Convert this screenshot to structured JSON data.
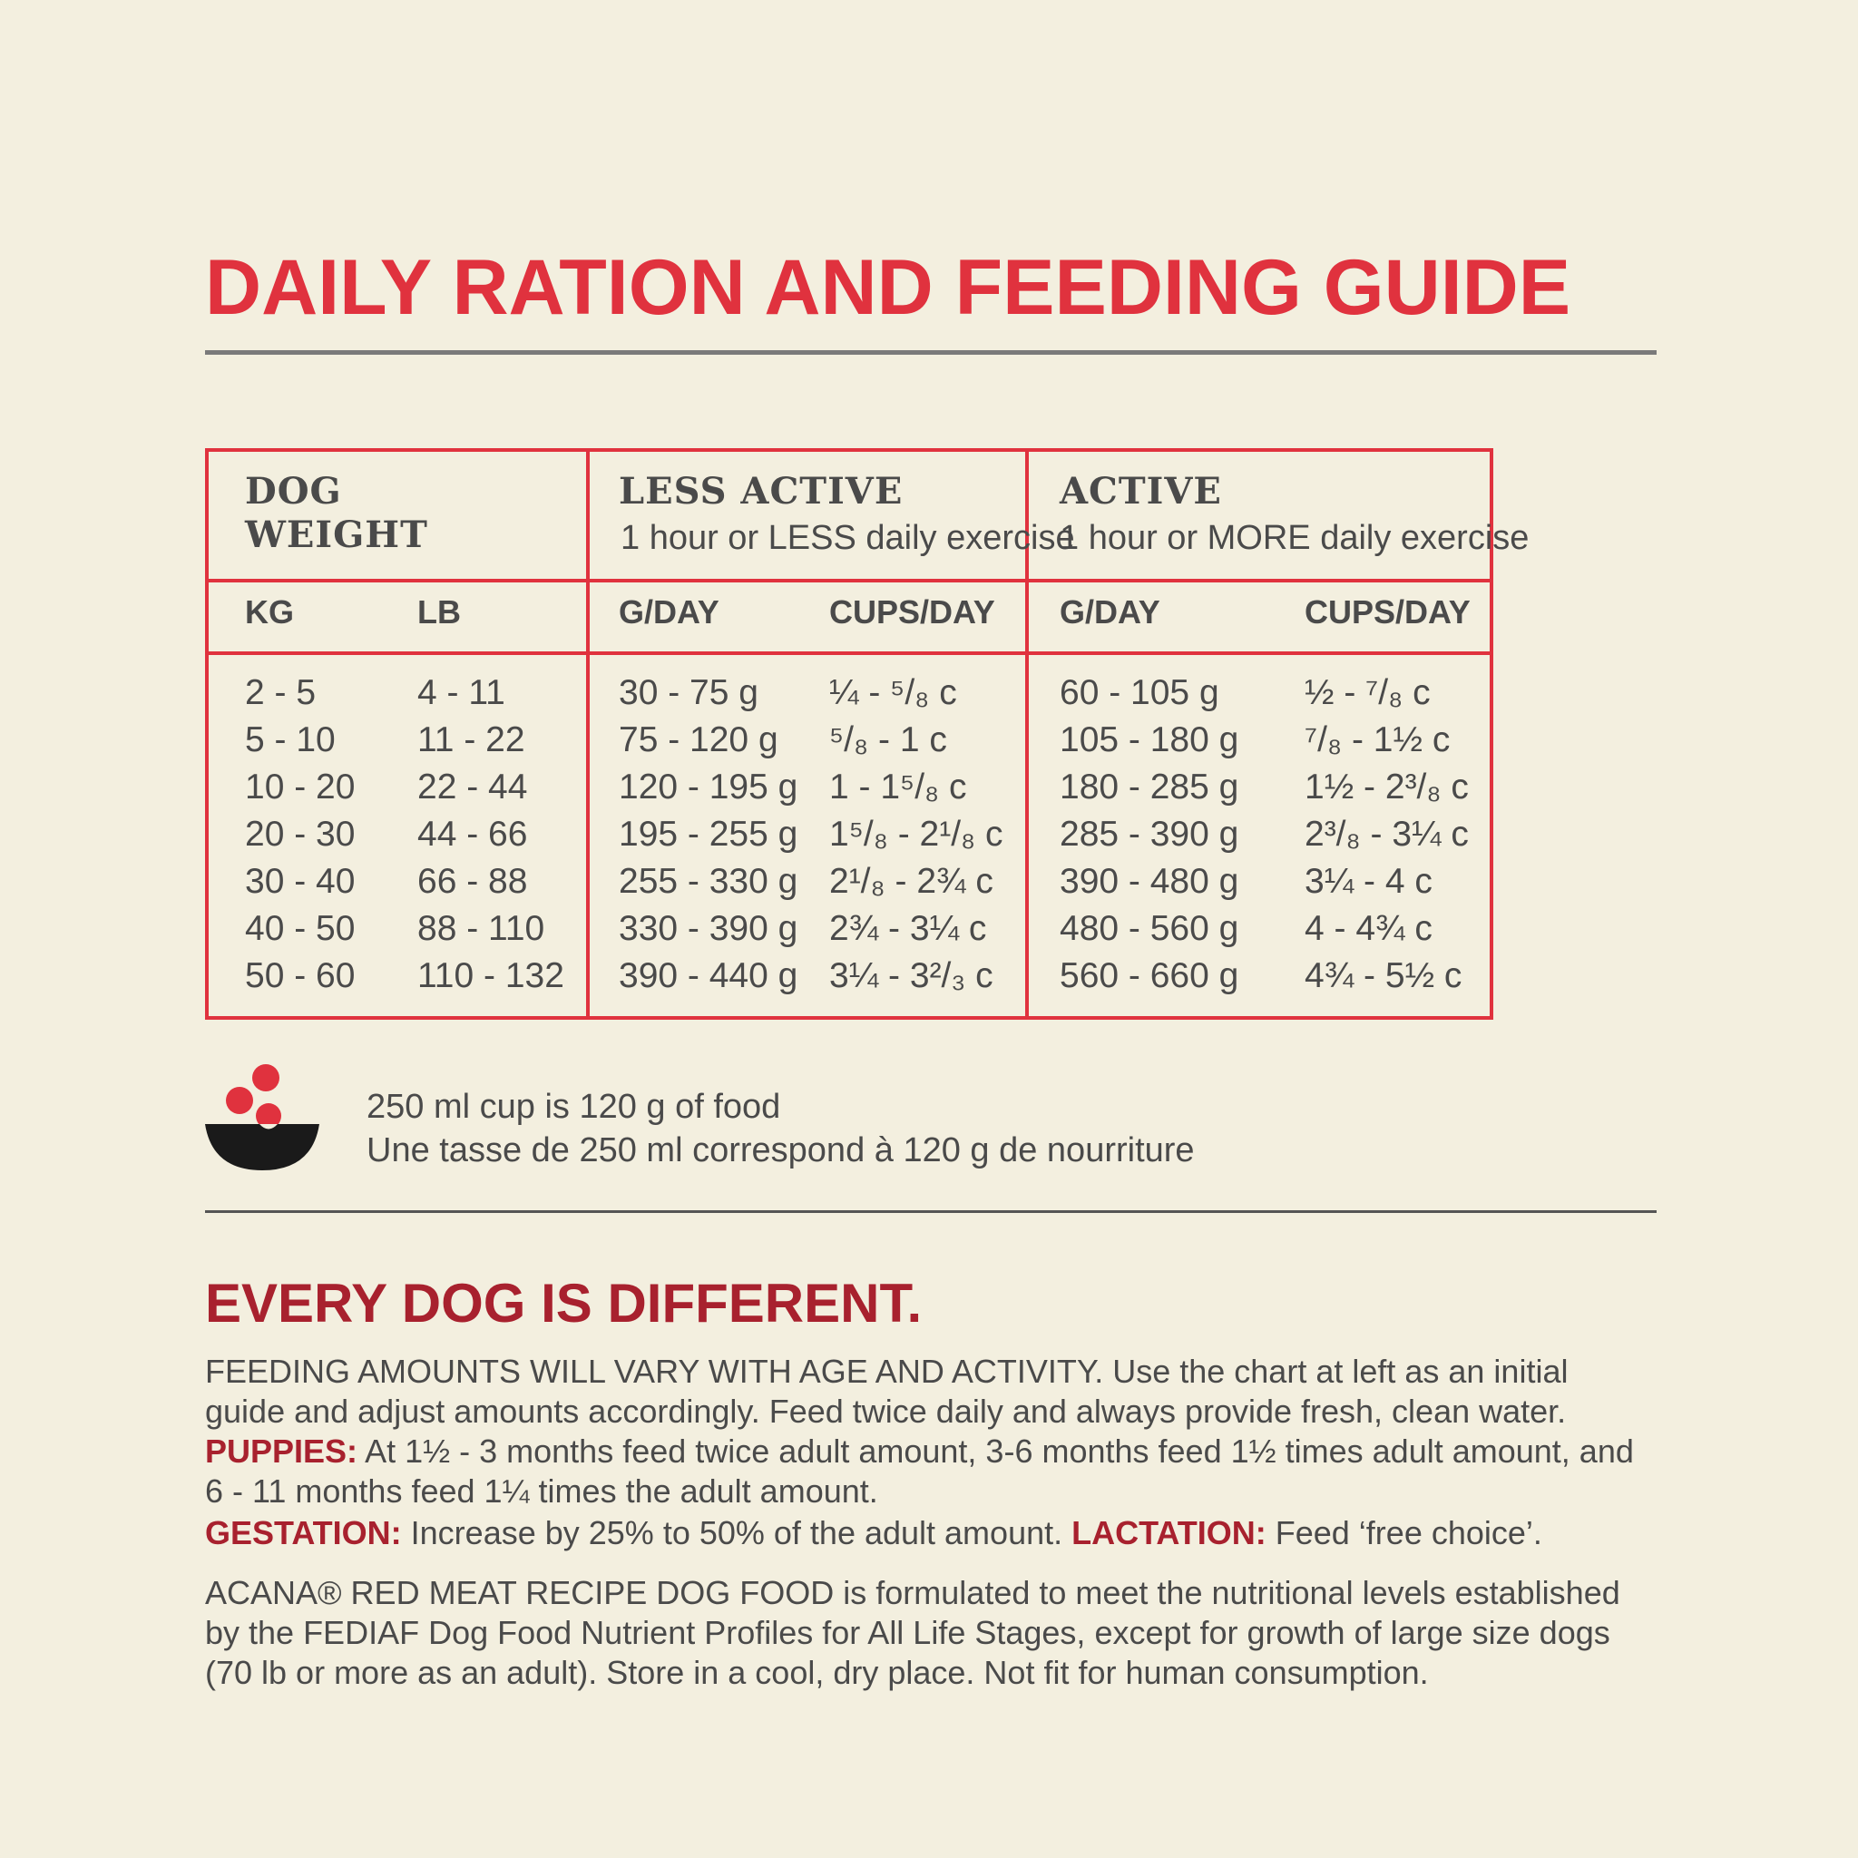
{
  "title": "DAILY RATION AND FEEDING GUIDE",
  "table": {
    "weight_header_line1": "DOG",
    "weight_header_line2": "WEIGHT",
    "less_active_header": "LESS ACTIVE",
    "less_active_sub": "1 hour or LESS daily exercise",
    "active_header": "ACTIVE",
    "active_sub": "1 hour or MORE daily exercise",
    "col_kg": "KG",
    "col_lb": "LB",
    "col_gday_1": "G/DAY",
    "col_cups_1": "CUPS/DAY",
    "col_gday_2": "G/DAY",
    "col_cups_2": "CUPS/DAY",
    "rows": [
      {
        "kg": "2 - 5",
        "lb": "4 - 11",
        "less_g": "30 - 75 g",
        "less_c": "¼ - ⁵/₈ c",
        "act_g": "60 - 105 g",
        "act_c": "½ - ⁷/₈ c"
      },
      {
        "kg": "5 - 10",
        "lb": "11 - 22",
        "less_g": "75 - 120 g",
        "less_c": "⁵/₈ - 1 c",
        "act_g": "105 - 180 g",
        "act_c": "⁷/₈ - 1½ c"
      },
      {
        "kg": "10 - 20",
        "lb": "22 - 44",
        "less_g": "120 - 195 g",
        "less_c": "1 - 1⁵/₈ c",
        "act_g": "180 - 285 g",
        "act_c": "1½ - 2³/₈ c"
      },
      {
        "kg": "20 - 30",
        "lb": "44 - 66",
        "less_g": "195 - 255 g",
        "less_c": "1⁵/₈ - 2¹/₈ c",
        "act_g": "285 - 390 g",
        "act_c": "2³/₈ - 3¼ c"
      },
      {
        "kg": "30 - 40",
        "lb": "66 - 88",
        "less_g": "255 - 330 g",
        "less_c": "2¹/₈ - 2¾ c",
        "act_g": "390 - 480 g",
        "act_c": "3¼ - 4 c"
      },
      {
        "kg": "40 - 50",
        "lb": "88 - 110",
        "less_g": "330 - 390 g",
        "less_c": "2¾ - 3¼ c",
        "act_g": "480 - 560 g",
        "act_c": "4 - 4¾ c"
      },
      {
        "kg": "50 - 60",
        "lb": "110 - 132",
        "less_g": "390 - 440 g",
        "less_c": "3¼ - 3²/₃ c",
        "act_g": "560 - 660 g",
        "act_c": "4¾ - 5½ c"
      }
    ]
  },
  "note": {
    "line1": "250 ml cup is 120 g of food",
    "line2": "Une tasse de 250 ml correspond à 120 g de nourriture"
  },
  "section": {
    "heading": "EVERY DOG IS DIFFERENT.",
    "feeding_amounts": "FEEDING AMOUNTS WILL VARY WITH AGE AND ACTIVITY.  Use the chart at left as an initial guide and adjust amounts accordingly. Feed twice daily and always provide fresh, clean water.",
    "puppies_label": "PUPPIES:",
    "puppies_text": " At 1½ - 3 months feed twice adult amount, 3-6 months feed 1½ times adult amount, and 6 - 11 months feed 1¼ times the adult amount.",
    "gestation_label": "GESTATION:",
    "gestation_text": " Increase by 25% to 50% of the adult amount. ",
    "lactation_label": "LACTATION:",
    "lactation_text": " Feed ‘free choice’.",
    "acana_text": "ACANA® RED MEAT RECIPE DOG FOOD is formulated to meet the nutritional levels established by the FEDIAF Dog Food Nutrient Profiles for All Life Stages, except for growth of large size dogs (70 lb or more as an adult).  Store in a cool, dry place. Not fit for human consumption."
  },
  "colors": {
    "background": "#f3efdf",
    "accent_red": "#e0323e",
    "dark_red": "#a8212e",
    "text_gray": "#4a4a4a"
  }
}
